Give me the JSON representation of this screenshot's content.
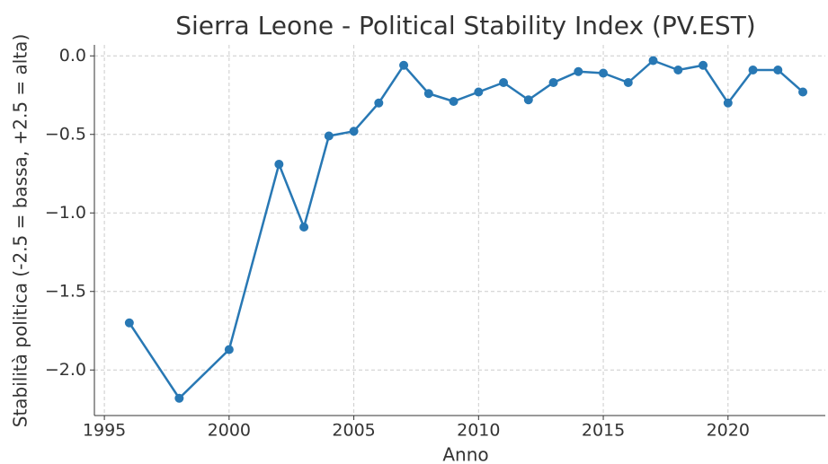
{
  "chart_data": {
    "type": "line",
    "title": "Sierra Leone - Political Stability Index (PV.EST)",
    "x_label": "Anno",
    "y_label": "Stabilità politica (-2.5 = bassa, +2.5 = alta)",
    "x": [
      1996,
      1998,
      2000,
      2002,
      2003,
      2004,
      2005,
      2006,
      2007,
      2008,
      2009,
      2010,
      2011,
      2012,
      2013,
      2014,
      2015,
      2016,
      2017,
      2018,
      2019,
      2020,
      2021,
      2022,
      2023
    ],
    "series": [
      {
        "name": "PV.EST",
        "color": "#2878b4",
        "values": [
          -1.7,
          -2.18,
          -1.87,
          -0.69,
          -1.09,
          -0.51,
          -0.48,
          -0.3,
          -0.06,
          -0.24,
          -0.29,
          -0.23,
          -0.17,
          -0.28,
          -0.17,
          -0.1,
          -0.11,
          -0.17,
          -0.03,
          -0.09,
          -0.06,
          -0.3,
          -0.09,
          -0.09,
          -0.23
        ]
      }
    ],
    "xlim": [
      1994.6,
      2023.9
    ],
    "ylim": [
      -2.29,
      0.07
    ],
    "xticks": [
      1995,
      2000,
      2005,
      2010,
      2015,
      2020
    ],
    "yticks": [
      {
        "value": 0,
        "label": "0.0"
      },
      {
        "value": -0.5,
        "label": "−0.5"
      },
      {
        "value": -1,
        "label": "−1.0"
      },
      {
        "value": -1.5,
        "label": "−1.5"
      },
      {
        "value": -2,
        "label": "−2.0"
      }
    ],
    "grid": true
  }
}
